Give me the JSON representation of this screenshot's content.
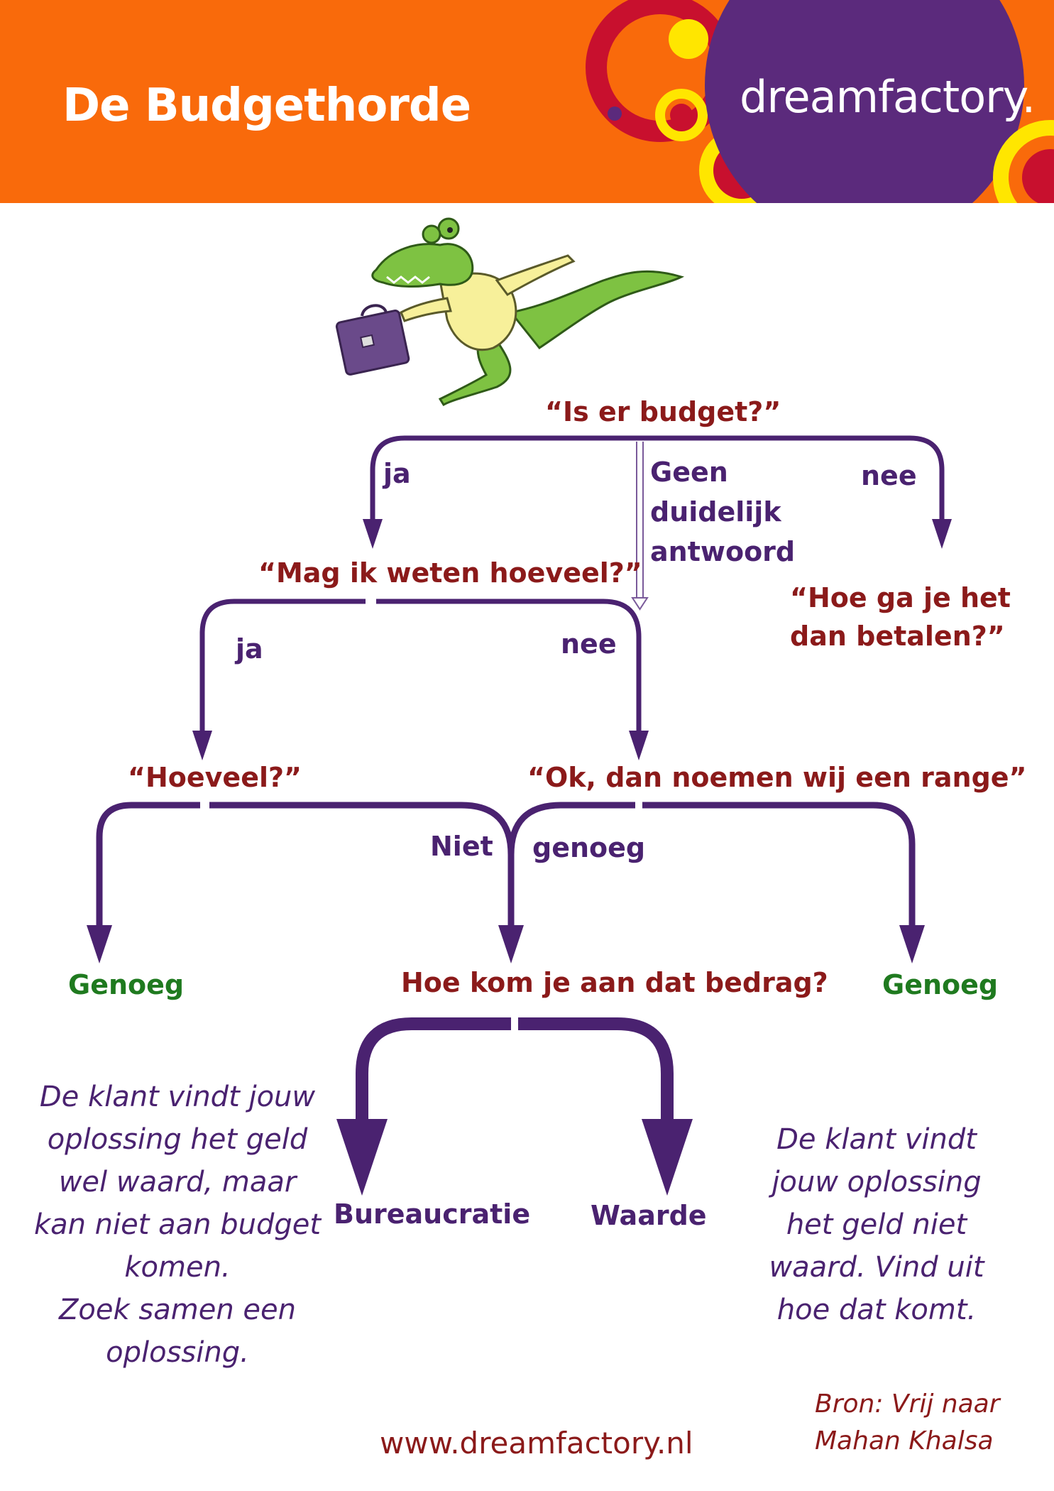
{
  "header": {
    "title": "De Budgethorde",
    "logo": "dreamfactory.",
    "colors": {
      "orange": "#f96a0b",
      "purple": "#5b2a7c",
      "red": "#c8102e",
      "yellow": "#ffe600"
    }
  },
  "illustration": {
    "name": "crocodile with briefcase"
  },
  "flow": {
    "q1": "“Is er budget?”",
    "q1_yes": "ja",
    "q1_no": "nee",
    "q1_unclear": [
      "Geen",
      "duidelijk",
      "antwoord"
    ],
    "q2": "“Mag ik weten hoeveel?”",
    "q2_yes": "ja",
    "q2_no": "nee",
    "q_no_budget": [
      "“Hoe ga je het",
      "dan betalen?”"
    ],
    "q3": "“Hoeveel?”",
    "q4": "“Ok, dan noemen wij een range”",
    "not_enough_left": "Niet",
    "not_enough_right": "genoeg",
    "enough_left": "Genoeg",
    "enough_right": "Genoeg",
    "q5": "Hoe kom je aan dat bedrag?",
    "opt_bureau": "Bureaucratie",
    "opt_value": "Waarde"
  },
  "notes": {
    "left": [
      "De klant vindt jouw",
      "oplossing het geld",
      "wel waard, maar",
      "kan niet aan budget",
      "komen.",
      "Zoek samen een",
      "oplossing."
    ],
    "right": [
      "De klant vindt",
      "jouw oplossing",
      "het geld niet",
      "waard. Vind uit",
      "hoe dat komt."
    ]
  },
  "footer": {
    "url": "www.dreamfactory.nl",
    "source": [
      "Bron: Vrij naar",
      "Mahan Khalsa"
    ]
  }
}
